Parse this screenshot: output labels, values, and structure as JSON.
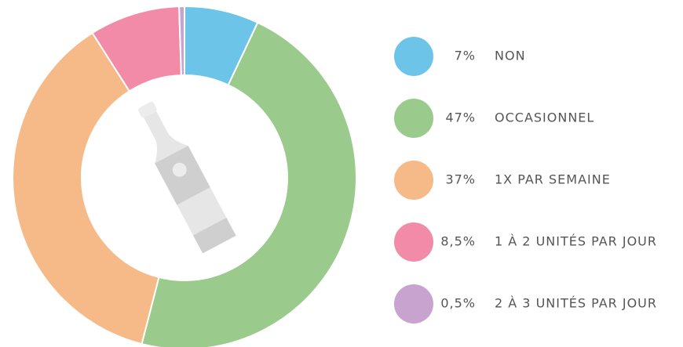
{
  "chart_data": {
    "type": "donut",
    "categories": [
      "NON",
      "OCCASIONNEL",
      "1X PAR SEMAINE",
      "1 À 2 UNITÉS PAR JOUR",
      "2 À 3 UNITÉS PAR JOUR"
    ],
    "values": [
      7,
      47,
      37,
      8.5,
      0.5
    ],
    "value_labels": [
      "7%",
      "47%",
      "37%",
      "8,5%",
      "0,5%"
    ],
    "colors": [
      "#6cc5e8",
      "#9aca8c",
      "#f5ba87",
      "#f28ba8",
      "#c9a3d0"
    ]
  }
}
